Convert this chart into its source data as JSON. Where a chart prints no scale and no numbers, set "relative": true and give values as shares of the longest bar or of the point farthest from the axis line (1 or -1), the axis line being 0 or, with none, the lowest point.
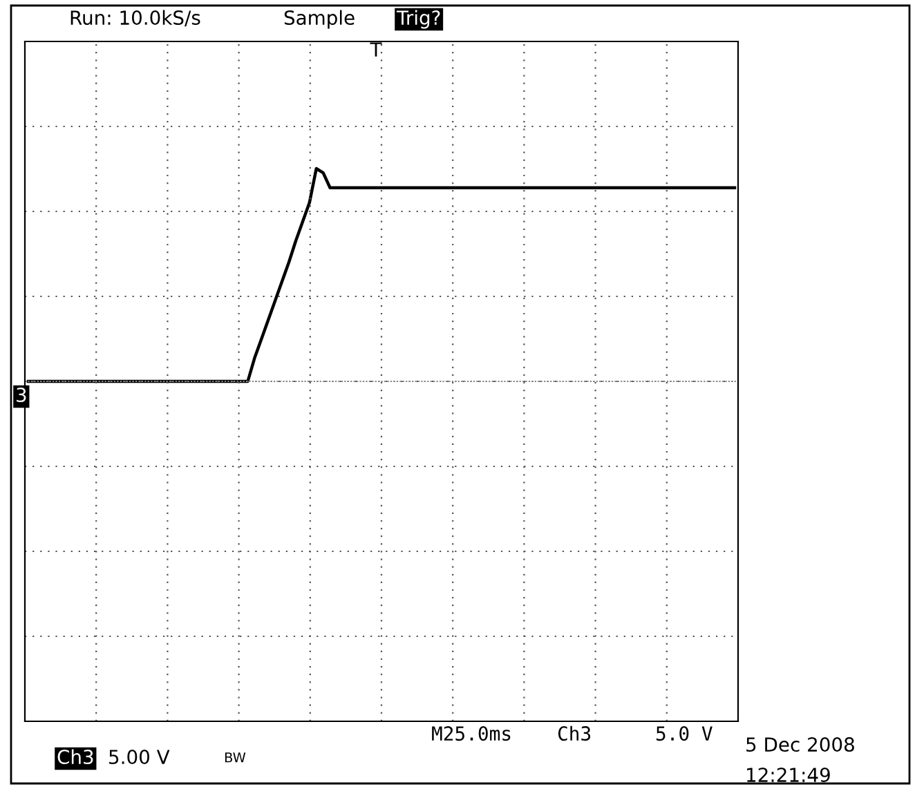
{
  "chart_data": {
    "type": "line",
    "relative": true,
    "grid": true,
    "color": "#000000",
    "categories": [
      null,
      null,
      null,
      null,
      null,
      null,
      null,
      null,
      null,
      null,
      null,
      null,
      null,
      null,
      null,
      null,
      null,
      null,
      null,
      null,
      null,
      null,
      null,
      null,
      null,
      null,
      null,
      null,
      null,
      null,
      null,
      null,
      null,
      null,
      null,
      null,
      null,
      null,
      null,
      null,
      null,
      null,
      null,
      null,
      null,
      null,
      null,
      null,
      null,
      null,
      null,
      null,
      null,
      null,
      null,
      null,
      null,
      null,
      null,
      null,
      null,
      null,
      null,
      null,
      null,
      null,
      null,
      null,
      null,
      null,
      null,
      null,
      null,
      null,
      null,
      null,
      null,
      null,
      null,
      null,
      null,
      null,
      null,
      null,
      null,
      null,
      null,
      null,
      null,
      null,
      null,
      null,
      null,
      null,
      null,
      null,
      null,
      null,
      null,
      null,
      null,
      null,
      null,
      null
    ],
    "values": [
      0,
      0,
      0,
      0,
      0,
      0,
      0,
      0,
      0,
      0,
      0,
      0,
      0,
      0,
      0,
      0,
      0,
      0,
      0,
      0,
      0,
      0,
      0,
      0,
      0,
      0,
      0,
      0,
      0,
      0,
      0,
      0,
      0,
      0.11,
      0.2,
      0.29,
      0.38,
      0.47,
      0.56,
      0.66,
      0.75,
      0.84,
      1.0,
      0.98,
      0.91,
      0.91,
      0.91,
      0.91,
      0.91,
      0.91,
      0.91,
      0.91,
      0.91,
      0.91,
      0.91,
      0.91,
      0.91,
      0.91,
      0.91,
      0.91,
      0.91,
      0.91,
      0.91,
      0.91,
      0.91,
      0.91,
      0.91,
      0.91,
      0.91,
      0.91,
      0.91,
      0.91,
      0.91,
      0.91,
      0.91,
      0.91,
      0.91,
      0.91,
      0.91,
      0.91,
      0.91,
      0.91,
      0.91,
      0.91,
      0.91,
      0.91,
      0.91,
      0.91,
      0.91,
      0.91,
      0.91,
      0.91,
      0.91,
      0.91,
      0.91,
      0.91,
      0.91,
      0.91,
      0.91,
      0.91,
      0.91,
      0.91,
      0.91,
      0.91
    ],
    "annotations": [
      "Run: 10.0kS/s",
      "Sample",
      "Trig?",
      "M25.0ms",
      "Ch3",
      "5.0 V",
      "5 Dec 2008",
      "12:21:49",
      "Ch3",
      "5.00 V",
      "BW",
      "3",
      "T"
    ]
  }
}
